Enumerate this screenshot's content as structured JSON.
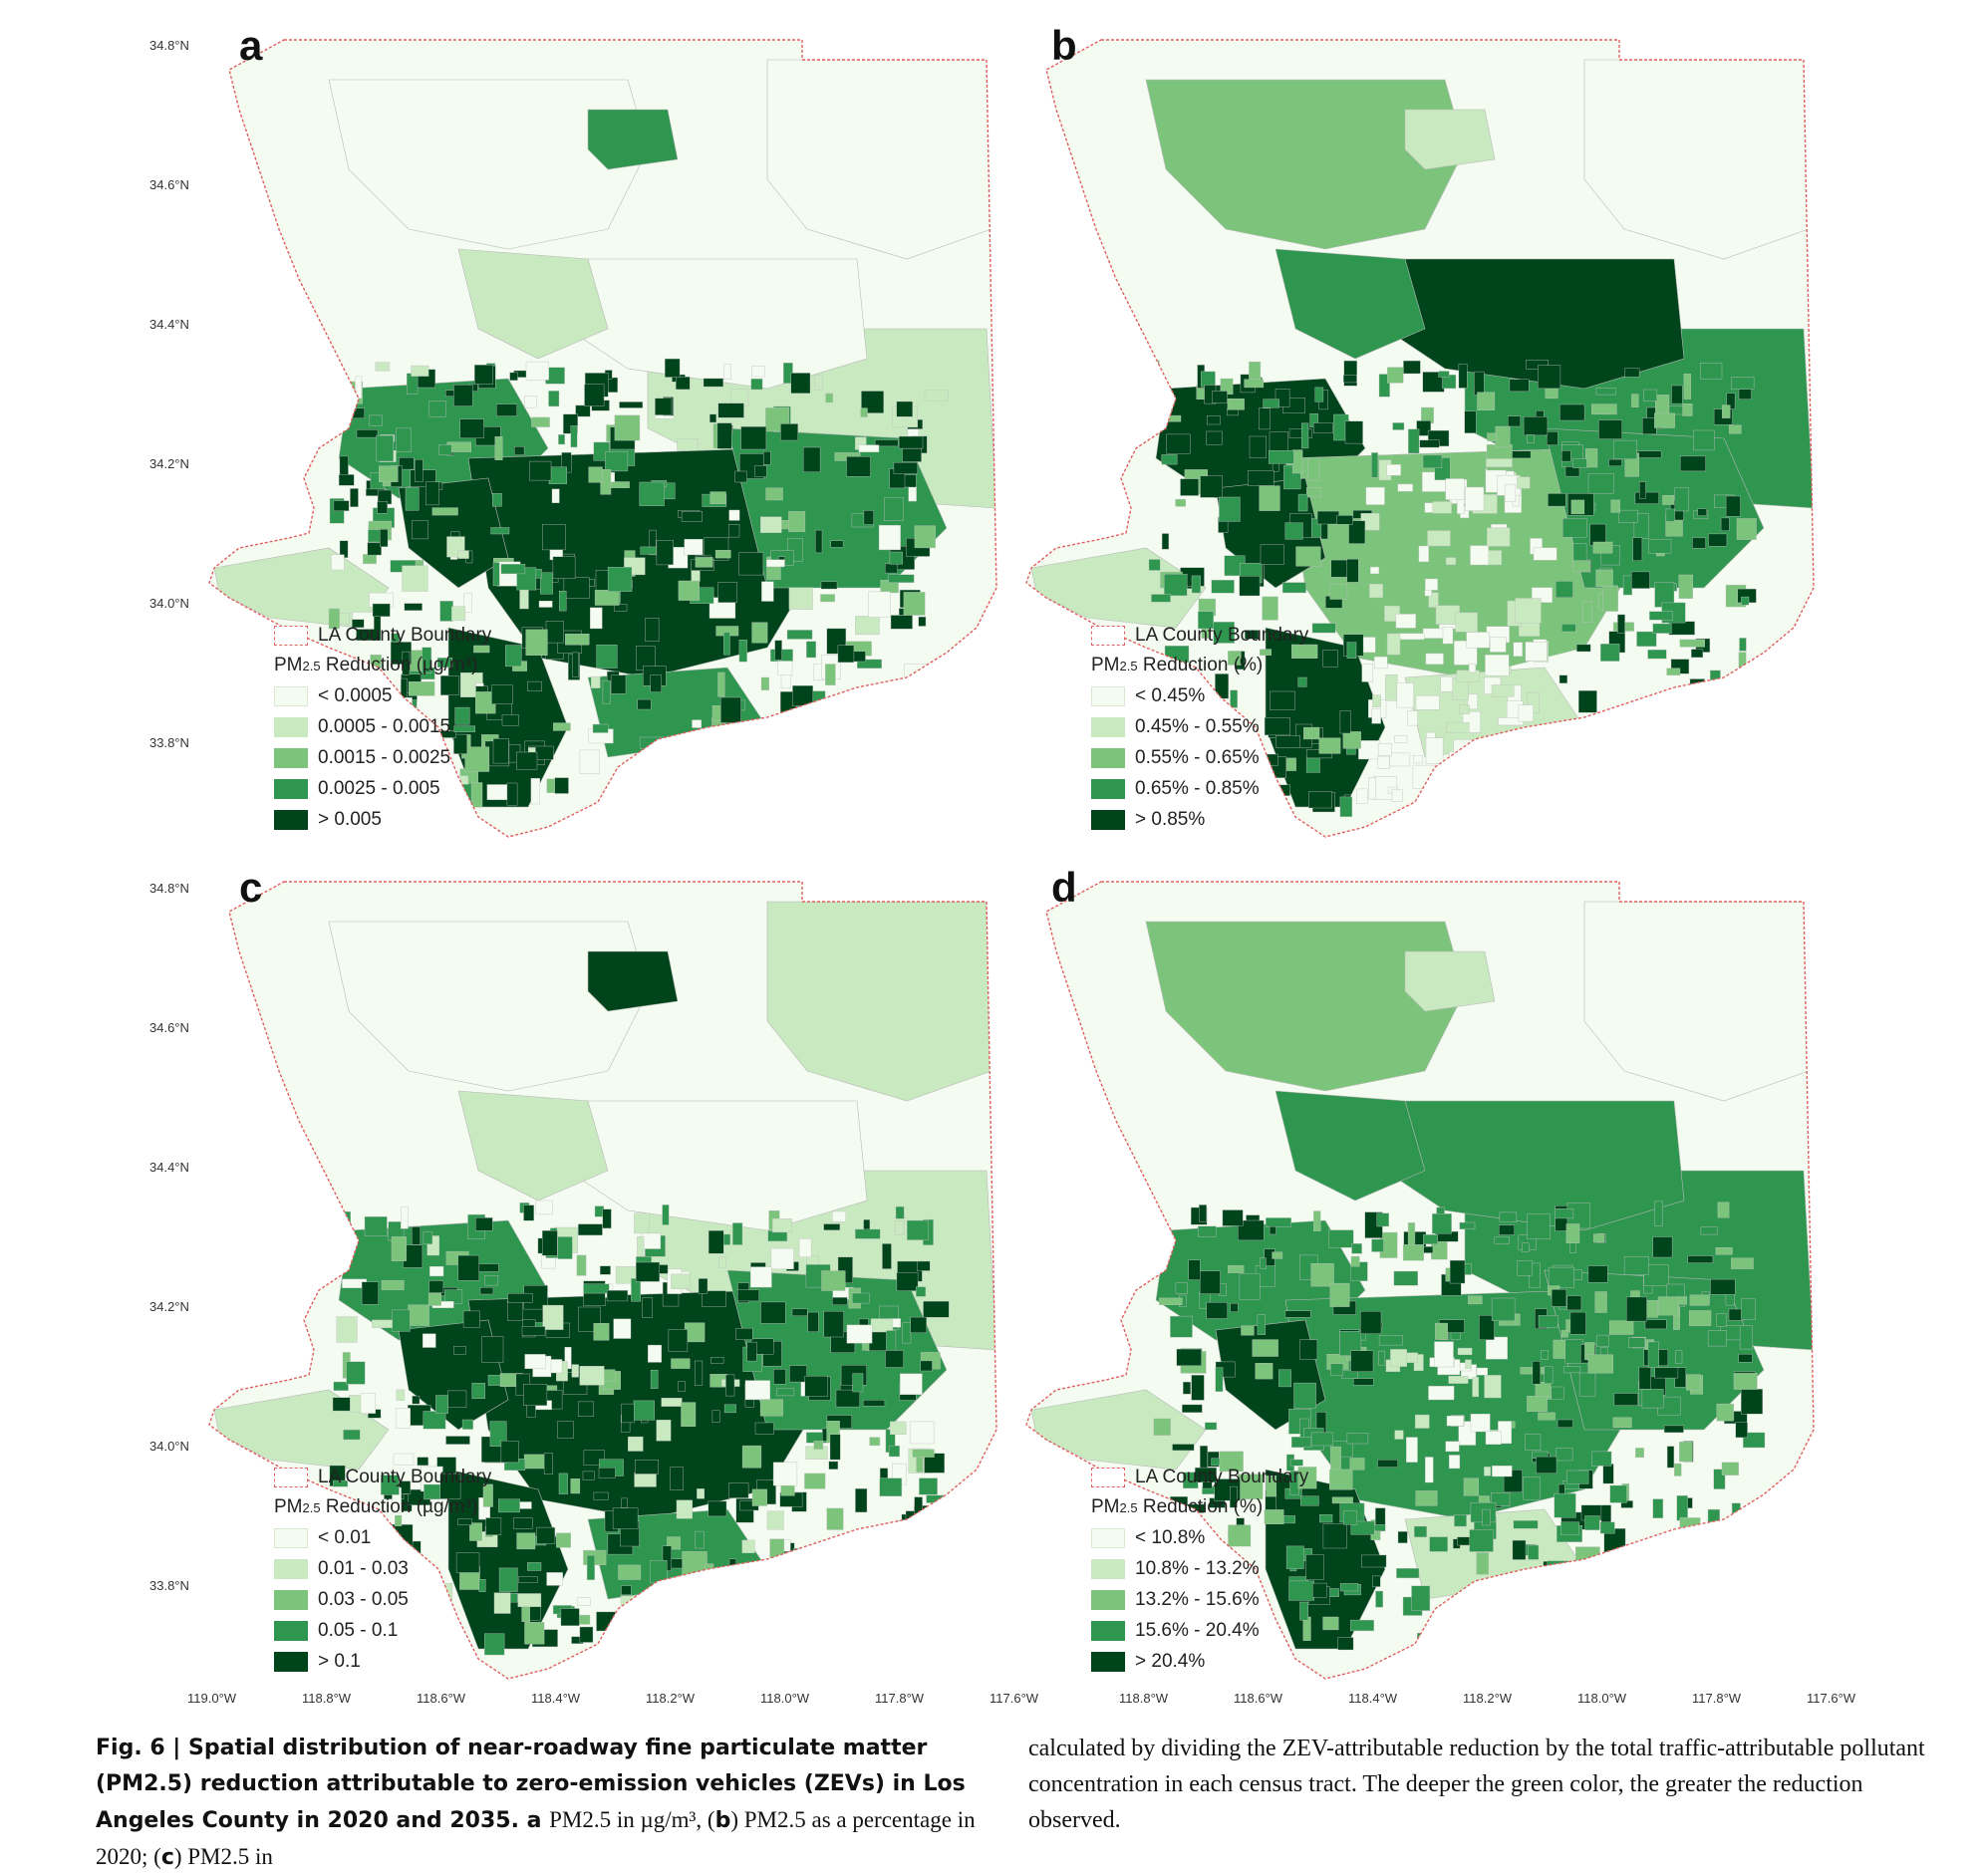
{
  "map": {
    "boundary_label": "LA County Boundary",
    "lat_ticks": [
      "34.8°N",
      "34.6°N",
      "34.4°N",
      "34.2°N",
      "34.0°N",
      "33.8°N"
    ],
    "lon_ticks_left": [
      "119.0°W",
      "118.8°W",
      "118.6°W",
      "118.4°W",
      "118.2°W",
      "118.0°W",
      "117.8°W",
      "117.6°W"
    ],
    "lon_ticks_right": [
      "118.8°W",
      "118.6°W",
      "118.4°W",
      "118.2°W",
      "118.0°W",
      "117.8°W",
      "117.6°W"
    ],
    "colors": [
      "#f4fbf1",
      "#c9e9c1",
      "#7cc47c",
      "#2f9650",
      "#00441b"
    ],
    "boundary_color": "#e06060"
  },
  "panels": [
    {
      "letter": "a",
      "legend_title_main": "PM",
      "legend_title_sub": "2.5",
      "legend_title_unit": " Reduction (µg/m³)",
      "classes": [
        "< 0.0005",
        "0.0005 - 0.0015",
        "0.0015 - 0.0025",
        "0.0025 - 0.005",
        "> 0.005"
      ]
    },
    {
      "letter": "b",
      "legend_title_main": "PM",
      "legend_title_sub": "2.5",
      "legend_title_unit": " Reduction (%)",
      "classes": [
        "< 0.45%",
        "0.45% - 0.55%",
        "0.55% - 0.65%",
        "0.65% - 0.85%",
        "> 0.85%"
      ]
    },
    {
      "letter": "c",
      "legend_title_main": "PM",
      "legend_title_sub": "2.5",
      "legend_title_unit": " Reduction (µg/m³)",
      "classes": [
        "< 0.01",
        "0.01 - 0.03",
        "0.03 - 0.05",
        "0.05 - 0.1",
        "> 0.1"
      ]
    },
    {
      "letter": "d",
      "legend_title_main": "PM",
      "legend_title_sub": "2.5",
      "legend_title_unit": " Reduction (%)",
      "classes": [
        "< 10.8%",
        "10.8% - 13.2%",
        "13.2% - 15.6%",
        "15.6% - 20.4%",
        "> 20.4%"
      ]
    }
  ],
  "caption": {
    "fig_label": "Fig. 6 | ",
    "left_bold": "Spatial distribution of near-roadway fine particulate matter (PM2.5) reduction attributable to zero-emission vehicles (ZEVs) in Los Angeles County in 2020 and 2035. a ",
    "left_regular_1": "PM2.5 in µg/m³, (",
    "left_b": "b",
    "left_regular_2": ") PM2.5 as a percentage in 2020; (",
    "left_c": "c",
    "left_regular_3": ") PM2.5 in",
    "right_text": "calculated by dividing the ZEV-attributable reduction by the total traffic-attributable pollutant concentration in each census tract. The deeper the green color, the greater the reduction observed."
  }
}
